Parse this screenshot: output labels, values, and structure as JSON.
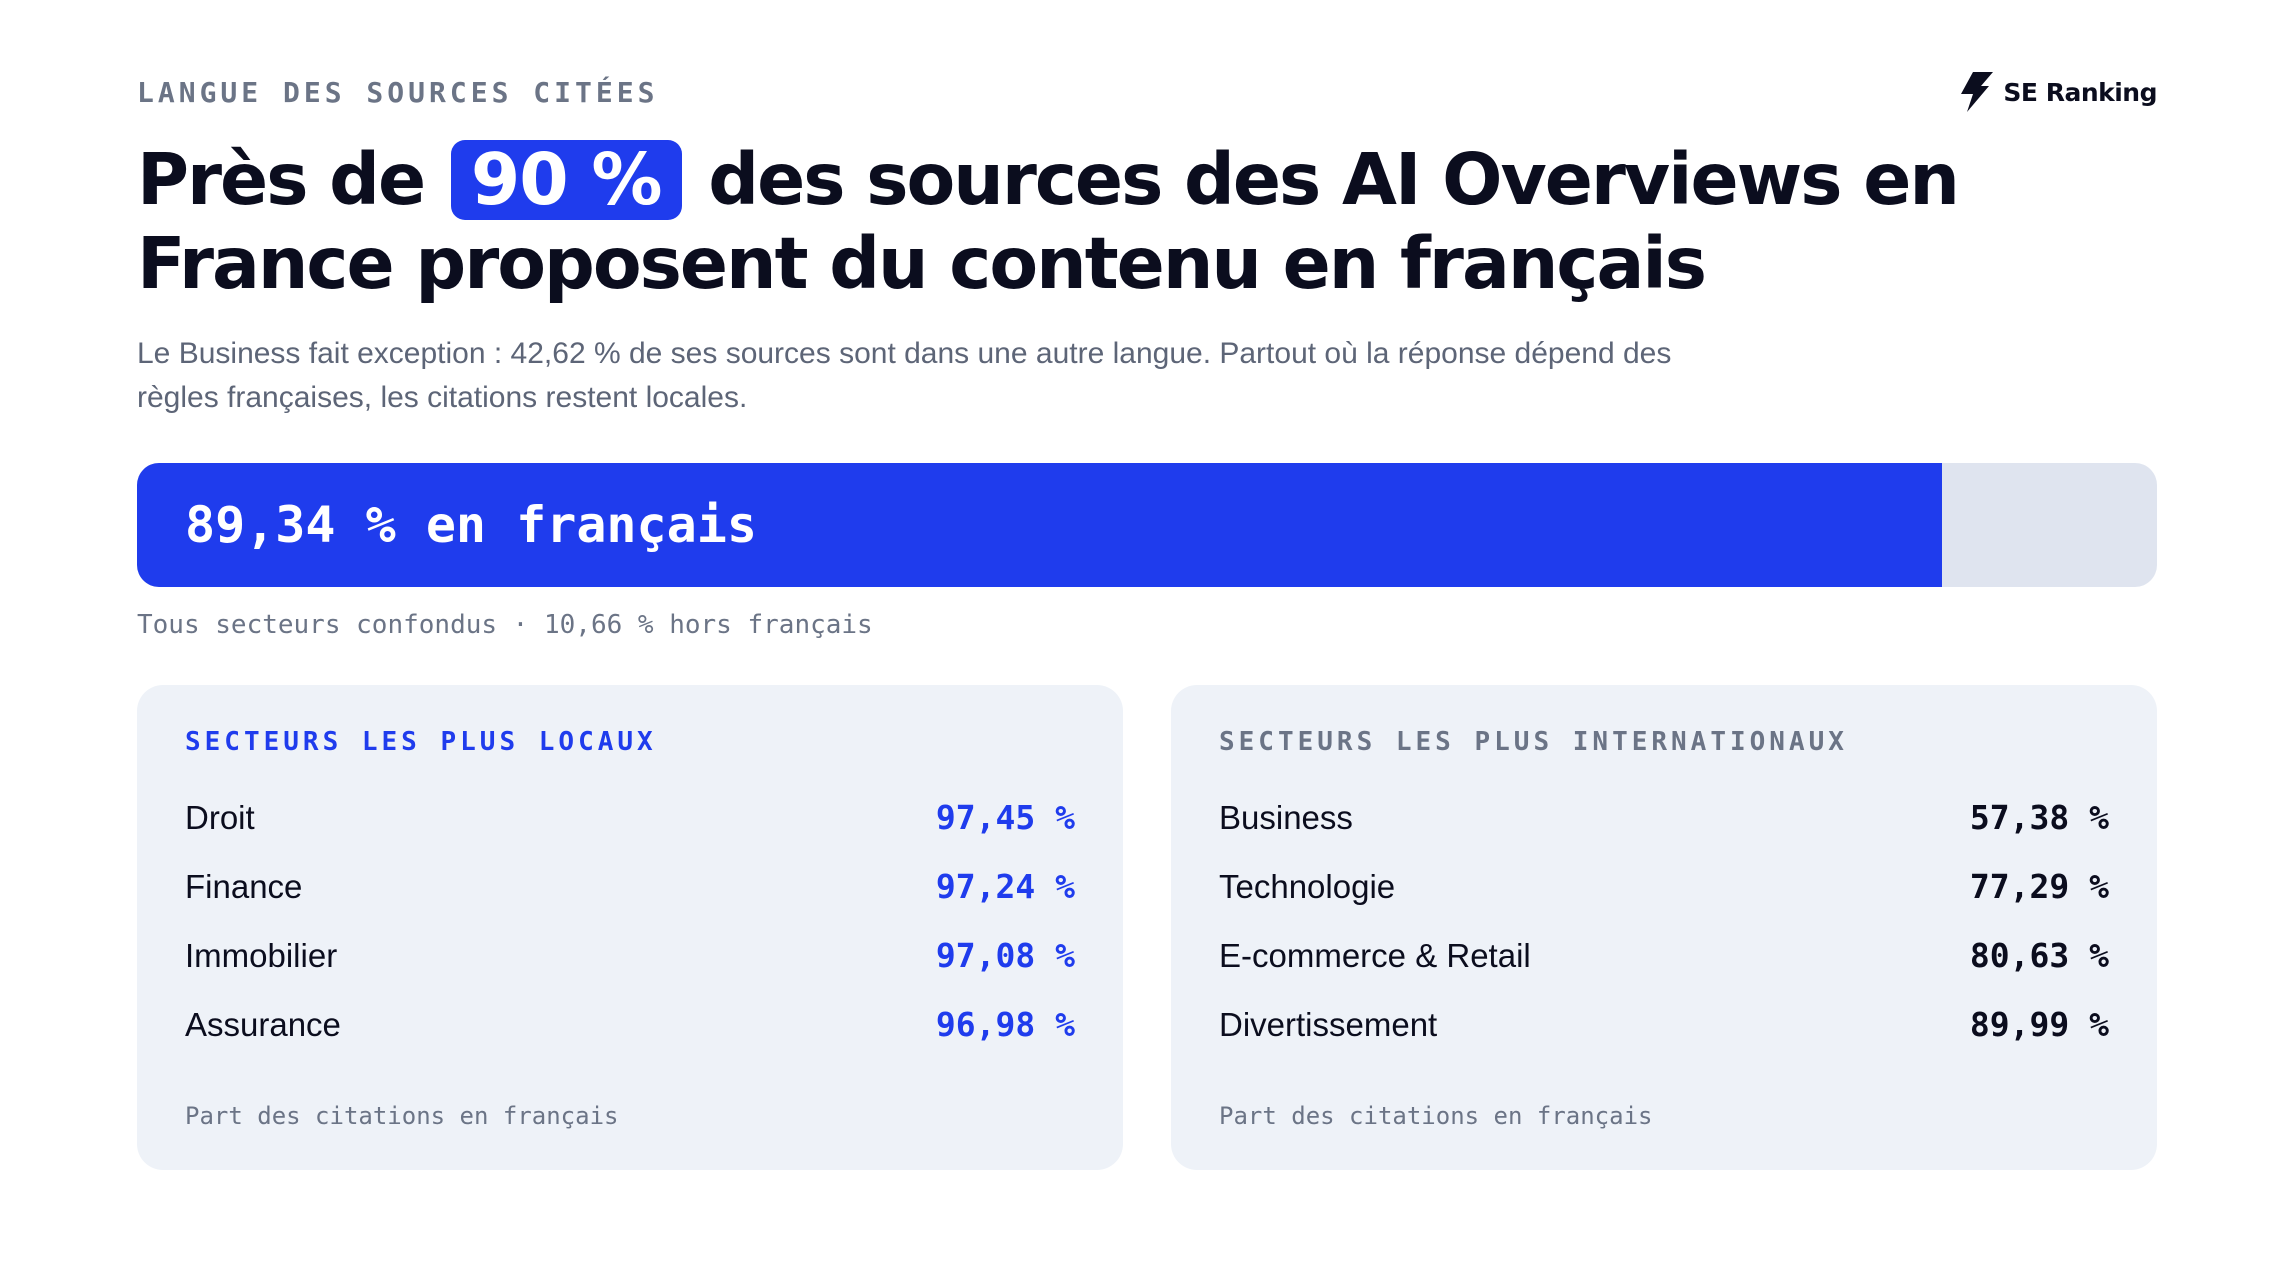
{
  "eyebrow": "LANGUE DES SOURCES CITÉES",
  "logo": {
    "text": "SE Ranking",
    "icon": "se-ranking-bolt-icon"
  },
  "headline": {
    "before": "Près de",
    "highlight": "90 %",
    "after": "des sources des AI Overviews en",
    "line2": "France proposent du contenu en français"
  },
  "subtitle": {
    "line1": "Le Business fait exception : 42,62 % de ses sources sont dans une autre langue. Partout où la réponse dépend des",
    "line2": "règles françaises, les citations restent locales."
  },
  "colors": {
    "accent": "#1f3ced",
    "track": "#dfe4ef",
    "card": "#eef2f8",
    "text": "#0b0d1e",
    "muted": "#6b7486"
  },
  "chart_data": [
    {
      "type": "bar",
      "orientation": "horizontal",
      "stacked": true,
      "label": "89,34 % en français",
      "caption": "Tous secteurs confondus · 10,66 % hors français",
      "values": [
        89.34,
        10.66
      ],
      "ylim": [
        0,
        100
      ]
    },
    {
      "type": "table",
      "title": "SECTEURS LES PLUS LOCAUX",
      "categories": [
        "Droit",
        "Finance",
        "Immobilier",
        "Assurance"
      ],
      "values": [
        97.45,
        97.24,
        97.08,
        96.98
      ],
      "value_labels": [
        "97,45 %",
        "97,24 %",
        "97,08 %",
        "96,98 %"
      ],
      "footnote": "Part des citations en français"
    },
    {
      "type": "table",
      "title": "SECTEURS LES PLUS INTERNATIONAUX",
      "categories": [
        "Business",
        "Technologie",
        "E-commerce & Retail",
        "Divertissement"
      ],
      "values": [
        57.38,
        77.29,
        80.63,
        89.99
      ],
      "value_labels": [
        "57,38 %",
        "77,29 %",
        "80,63 %",
        "89,99 %"
      ],
      "footnote": "Part des citations en français"
    }
  ]
}
